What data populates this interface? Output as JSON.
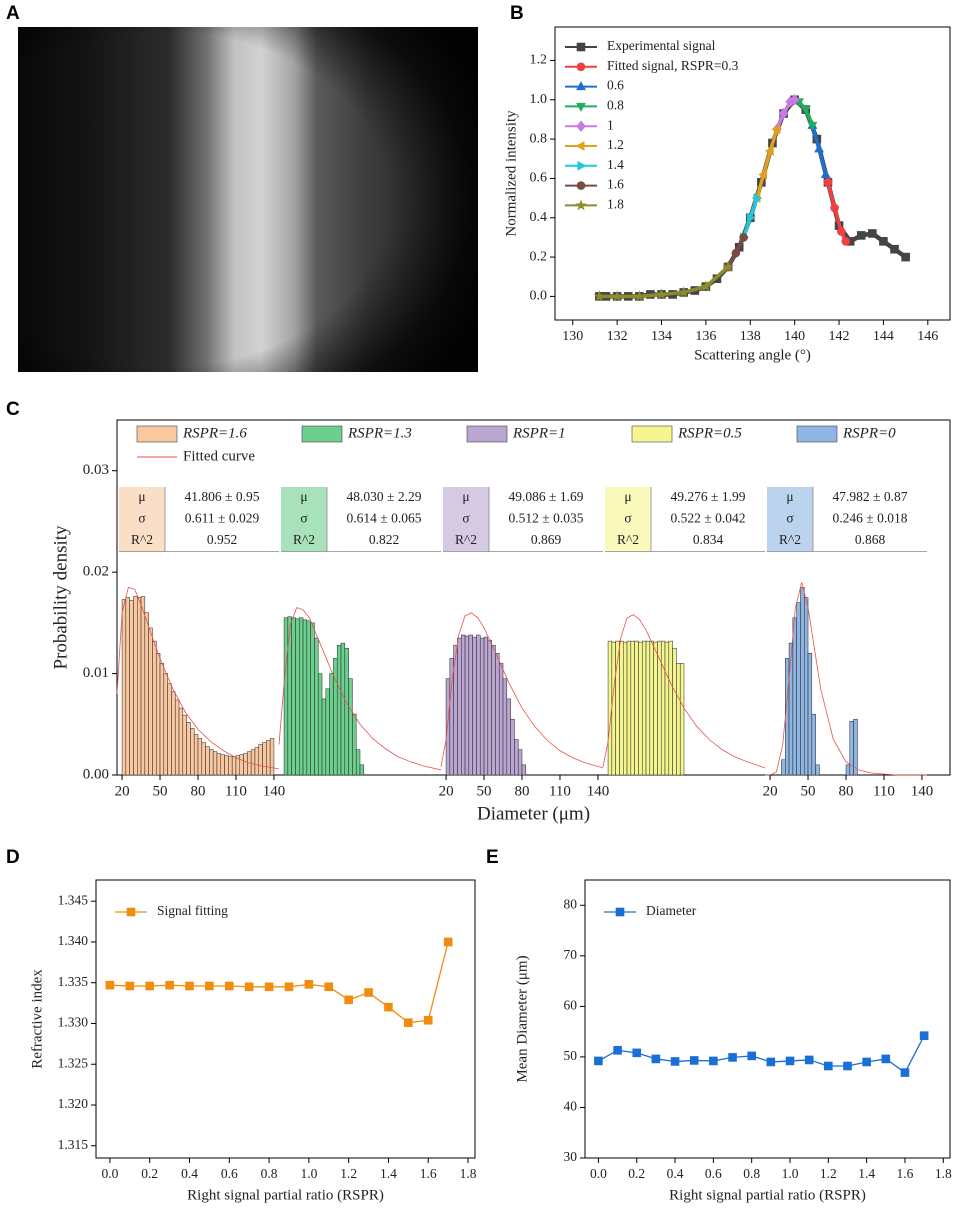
{
  "panel_labels": [
    "A",
    "B",
    "C",
    "D",
    "E"
  ],
  "chart_data": [
    {
      "type": "line",
      "xlabel": "Scattering angle (°)",
      "ylabel": "Normalized intensity",
      "xlim": [
        129.2,
        147
      ],
      "ylim": [
        -0.12,
        1.37
      ],
      "xticks": [
        130,
        132,
        134,
        136,
        138,
        140,
        142,
        144,
        146
      ],
      "yticks": [
        {
          "value": 0,
          "label": "0.0"
        },
        0.2,
        0.4,
        0.6,
        0.8,
        {
          "value": 1,
          "label": "1.0"
        },
        1.2
      ],
      "legend": "upper left",
      "series": [
        {
          "name": "Experimental signal",
          "color": "#444444",
          "marker": "square",
          "x": [
            131.2,
            131.5,
            132,
            132.5,
            133,
            133.5,
            134,
            134.5,
            135,
            135.5,
            136,
            136.5,
            137,
            137.5,
            138,
            138.5,
            139,
            139.5,
            140,
            140.5,
            141,
            141.5,
            142,
            142.5,
            143,
            143.5,
            144,
            144.5,
            145
          ],
          "values": [
            0,
            0,
            0,
            0,
            0,
            0.01,
            0.01,
            0.01,
            0.02,
            0.03,
            0.05,
            0.09,
            0.15,
            0.25,
            0.4,
            0.58,
            0.78,
            0.93,
            1.0,
            0.95,
            0.8,
            0.58,
            0.36,
            0.28,
            0.31,
            0.32,
            0.28,
            0.24,
            0.2
          ]
        },
        {
          "name": "Fitted signal, RSPR=0.3",
          "color": "#f04040",
          "marker": "circle",
          "x": [
            141.5,
            141.8,
            142.1,
            142.3
          ],
          "values": [
            0.58,
            0.45,
            0.33,
            0.28
          ]
        },
        {
          "name": "0.6",
          "color": "#1f6fd0",
          "marker": "triangle-up",
          "x": [
            140.8,
            141.1,
            141.4
          ],
          "values": [
            0.87,
            0.75,
            0.62
          ]
        },
        {
          "name": "0.8",
          "color": "#1fae5c",
          "marker": "triangle-down",
          "x": [
            140.2,
            140.5,
            140.8
          ],
          "values": [
            0.99,
            0.95,
            0.87
          ]
        },
        {
          "name": "1",
          "color": "#c77be0",
          "marker": "diamond",
          "x": [
            139.2,
            139.5,
            139.8,
            140.0
          ],
          "values": [
            0.85,
            0.93,
            0.99,
            1.0
          ]
        },
        {
          "name": "1.2",
          "color": "#e0a020",
          "marker": "triangle-left",
          "x": [
            138.3,
            138.6,
            138.9,
            139.2
          ],
          "values": [
            0.5,
            0.62,
            0.74,
            0.85
          ]
        },
        {
          "name": "1.4",
          "color": "#20c8d8",
          "marker": "triangle-right",
          "x": [
            137.7,
            138.0,
            138.3
          ],
          "values": [
            0.3,
            0.4,
            0.5
          ]
        },
        {
          "name": "1.6",
          "color": "#7a4a44",
          "marker": "circle",
          "x": [
            137.0,
            137.35,
            137.7
          ],
          "values": [
            0.15,
            0.22,
            0.3
          ]
        },
        {
          "name": "1.8",
          "color": "#8c8c2a",
          "marker": "star",
          "x": [
            131.2,
            132,
            133,
            134,
            135,
            136,
            137
          ],
          "values": [
            0,
            0,
            0,
            0.01,
            0.02,
            0.05,
            0.15
          ]
        }
      ]
    },
    {
      "type": "histogram",
      "xlabel": "Diameter (μm)",
      "ylabel": "Probability density",
      "ylim": [
        0,
        0.035
      ],
      "yticks": [
        {
          "value": 0,
          "label": "0.00"
        },
        {
          "value": 0.01,
          "label": "0.01"
        },
        {
          "value": 0.02,
          "label": "0.02"
        },
        {
          "value": 0.03,
          "label": "0.03"
        }
      ],
      "fit_name": "Fitted curve",
      "fit_color": "#e85050",
      "stat_labels": [
        "μ",
        "σ",
        "R^2"
      ],
      "bins": [
        20,
        23,
        26,
        29,
        32,
        35,
        38,
        41,
        44,
        47,
        50,
        53,
        56,
        59,
        62,
        65,
        68,
        71,
        74,
        77,
        80,
        83,
        86,
        89,
        92,
        95,
        98,
        101,
        104,
        107,
        110,
        113,
        116,
        119,
        122,
        125,
        128,
        131,
        134,
        137,
        140
      ],
      "fit_x": [
        16,
        20,
        25,
        30,
        35,
        40,
        45,
        50,
        60,
        70,
        80,
        90,
        100,
        110,
        120,
        130,
        144
      ],
      "groups": [
        {
          "name": "RSPR=1.6",
          "color": "#f9c8a0",
          "xlim": [
            16,
            144
          ],
          "xticks": [
            20,
            50,
            80,
            110,
            140
          ],
          "counts": [
            0.0173,
            0.0175,
            0.0172,
            0.0176,
            0.0175,
            0.0176,
            0.016,
            0.0145,
            0.0132,
            0.012,
            0.011,
            0.01,
            0.009,
            0.0082,
            0.0074,
            0.0066,
            0.0059,
            0.0052,
            0.0046,
            0.004,
            0.0036,
            0.0032,
            0.0028,
            0.0025,
            0.0023,
            0.0021,
            0.002,
            0.0019,
            0.0018,
            0.0018,
            0.0019,
            0.002,
            0.0021,
            0.0023,
            0.0025,
            0.0027,
            0.003,
            0.0032,
            0.0034,
            0.0036
          ],
          "fit": [
            0.008,
            0.016,
            0.0185,
            0.0183,
            0.0168,
            0.015,
            0.0132,
            0.0115,
            0.0085,
            0.0062,
            0.0045,
            0.0033,
            0.0024,
            0.0017,
            0.0012,
            0.0009,
            0.0006
          ],
          "stats": [
            "41.806 ± 0.95",
            "0.611 ± 0.029"
          ],
          "r2": 0.952
        },
        {
          "name": "RSPR=1.3",
          "color": "#6ccf8e",
          "xlim": [
            16,
            144
          ],
          "counts": [
            0.0155,
            0.0156,
            0.0155,
            0.0154,
            0.0155,
            0.0153,
            0.0152,
            0.015,
            0.0135,
            0.01,
            0.0075,
            0.0085,
            0.01,
            0.0115,
            0.0128,
            0.013,
            0.0125,
            0.0095,
            0.006,
            0.0025,
            0.001,
            0,
            0,
            0,
            0,
            0,
            0,
            0,
            0,
            0,
            0,
            0,
            0,
            0,
            0,
            0,
            0,
            0,
            0,
            0
          ],
          "fit": [
            0.003,
            0.009,
            0.0148,
            0.0165,
            0.0163,
            0.0155,
            0.014,
            0.0125,
            0.0095,
            0.007,
            0.005,
            0.0036,
            0.0026,
            0.0018,
            0.0013,
            0.0009,
            0.0005
          ],
          "stats": [
            "48.030 ± 2.29",
            "0.614 ± 0.065"
          ],
          "r2": 0.822
        },
        {
          "name": "RSPR=1",
          "color": "#bba5d1",
          "xlim": [
            16,
            144
          ],
          "xticks": [
            20,
            50,
            80,
            110,
            140
          ],
          "counts": [
            0.0095,
            0.0115,
            0.0128,
            0.0135,
            0.0138,
            0.0137,
            0.0138,
            0.0136,
            0.0138,
            0.0135,
            0.0136,
            0.0133,
            0.0128,
            0.012,
            0.011,
            0.0095,
            0.0075,
            0.0055,
            0.0035,
            0.0025,
            0.001,
            0,
            0,
            0,
            0,
            0,
            0,
            0,
            0,
            0,
            0,
            0,
            0,
            0,
            0,
            0,
            0,
            0,
            0,
            0
          ],
          "fit": [
            0.0008,
            0.0035,
            0.0095,
            0.0138,
            0.0157,
            0.016,
            0.0155,
            0.0145,
            0.0118,
            0.009,
            0.0066,
            0.0048,
            0.0034,
            0.0024,
            0.0017,
            0.0012,
            0.0007
          ],
          "stats": [
            "49.086 ± 1.69",
            "0.512 ± 0.035"
          ],
          "r2": 0.869
        },
        {
          "name": "RSPR=0.5",
          "color": "#f5f590",
          "xlim": [
            16,
            144
          ],
          "counts": [
            0.0132,
            0.0131,
            0.0132,
            0.0132,
            0.0131,
            0.0132,
            0.0132,
            0.0132,
            0.0131,
            0.0132,
            0.0132,
            0.0132,
            0.0131,
            0.0132,
            0.0132,
            0.0131,
            0.0132,
            0.0125,
            0.011,
            0.011,
            0,
            0,
            0,
            0,
            0,
            0,
            0,
            0,
            0,
            0,
            0,
            0,
            0,
            0,
            0,
            0,
            0,
            0,
            0,
            0
          ],
          "fit": [
            0.0008,
            0.0033,
            0.009,
            0.0135,
            0.0155,
            0.0158,
            0.0153,
            0.0143,
            0.0116,
            0.0089,
            0.0066,
            0.0048,
            0.0035,
            0.0025,
            0.0018,
            0.0013,
            0.0007
          ],
          "stats": [
            "49.276 ± 1.99",
            "0.522 ± 0.042"
          ],
          "r2": 0.834
        },
        {
          "name": "RSPR=0",
          "color": "#8fb5e3",
          "xlim": [
            16,
            144
          ],
          "xticks": [
            20,
            50,
            80,
            110,
            140
          ],
          "counts": [
            0,
            0,
            0,
            0.0015,
            0.0115,
            0.013,
            0.0155,
            0.017,
            0.0185,
            0.0175,
            0.012,
            0.006,
            0.001,
            0,
            0,
            0,
            0,
            0,
            0,
            0,
            0.001,
            0.0053,
            0.0055,
            0,
            0,
            0,
            0,
            0,
            0,
            0,
            0,
            0,
            0,
            0,
            0,
            0,
            0,
            0,
            0,
            0
          ],
          "fit": [
            0,
            0,
            0.0003,
            0.003,
            0.0095,
            0.0165,
            0.019,
            0.0165,
            0.0085,
            0.0035,
            0.0013,
            0.0005,
            0.0002,
            0.0001,
            0,
            0,
            0
          ],
          "stats": [
            "47.982 ± 0.87",
            "0.246 ± 0.018"
          ],
          "r2": 0.868
        }
      ]
    },
    {
      "type": "line",
      "xlabel": "Right signal partial ratio (RSPR)",
      "ylabel": "Refractive index",
      "xlim": [
        -0.07,
        1.835
      ],
      "ylim": [
        1.3135,
        1.3476
      ],
      "xticks": [
        {
          "value": 0,
          "label": "0.0"
        },
        0.2,
        0.4,
        0.6,
        0.8,
        {
          "value": 1,
          "label": "1.0"
        },
        1.2,
        1.4,
        1.6,
        1.8
      ],
      "yticks": [
        1.345,
        {
          "value": 1.34,
          "label": "1.340"
        },
        1.335,
        {
          "value": 1.33,
          "label": "1.330"
        },
        1.325,
        {
          "value": 1.32,
          "label": "1.320"
        },
        1.315
      ],
      "legend": "upper left",
      "x": [
        0,
        0.1,
        0.2,
        0.3,
        0.4,
        0.5,
        0.6,
        0.7,
        0.8,
        0.9,
        1.0,
        1.1,
        1.2,
        1.3,
        1.4,
        1.5,
        1.6,
        1.7
      ],
      "series": [
        {
          "name": "Signal fitting",
          "color": "#f28c0f",
          "marker": "square",
          "values": [
            1.3347,
            1.3346,
            1.3346,
            1.3347,
            1.3346,
            1.3346,
            1.3346,
            1.3345,
            1.3345,
            1.3345,
            1.3348,
            1.3345,
            1.3329,
            1.3338,
            1.332,
            1.3301,
            1.3304,
            1.34
          ]
        }
      ]
    },
    {
      "type": "line",
      "xlabel": "Right signal partial ratio (RSPR)",
      "ylabel": "Mean Diameter (μm)",
      "xlim": [
        -0.07,
        1.835
      ],
      "ylim": [
        30,
        85
      ],
      "xticks": [
        {
          "value": 0,
          "label": "0.0"
        },
        0.2,
        0.4,
        0.6,
        0.8,
        {
          "value": 1,
          "label": "1.0"
        },
        1.2,
        1.4,
        1.6,
        1.8
      ],
      "yticks": [
        30,
        40,
        50,
        60,
        70,
        80
      ],
      "legend": "upper left",
      "x": [
        0,
        0.1,
        0.2,
        0.3,
        0.4,
        0.5,
        0.6,
        0.7,
        0.8,
        0.9,
        1.0,
        1.1,
        1.2,
        1.3,
        1.4,
        1.5,
        1.6,
        1.7
      ],
      "series": [
        {
          "name": "Diameter",
          "color": "#1a6fd6",
          "marker": "square",
          "values": [
            49.2,
            51.3,
            50.8,
            49.6,
            49.1,
            49.3,
            49.2,
            49.9,
            50.2,
            49.0,
            49.2,
            49.4,
            48.2,
            48.2,
            49.0,
            49.6,
            46.9,
            54.2
          ]
        }
      ]
    }
  ]
}
